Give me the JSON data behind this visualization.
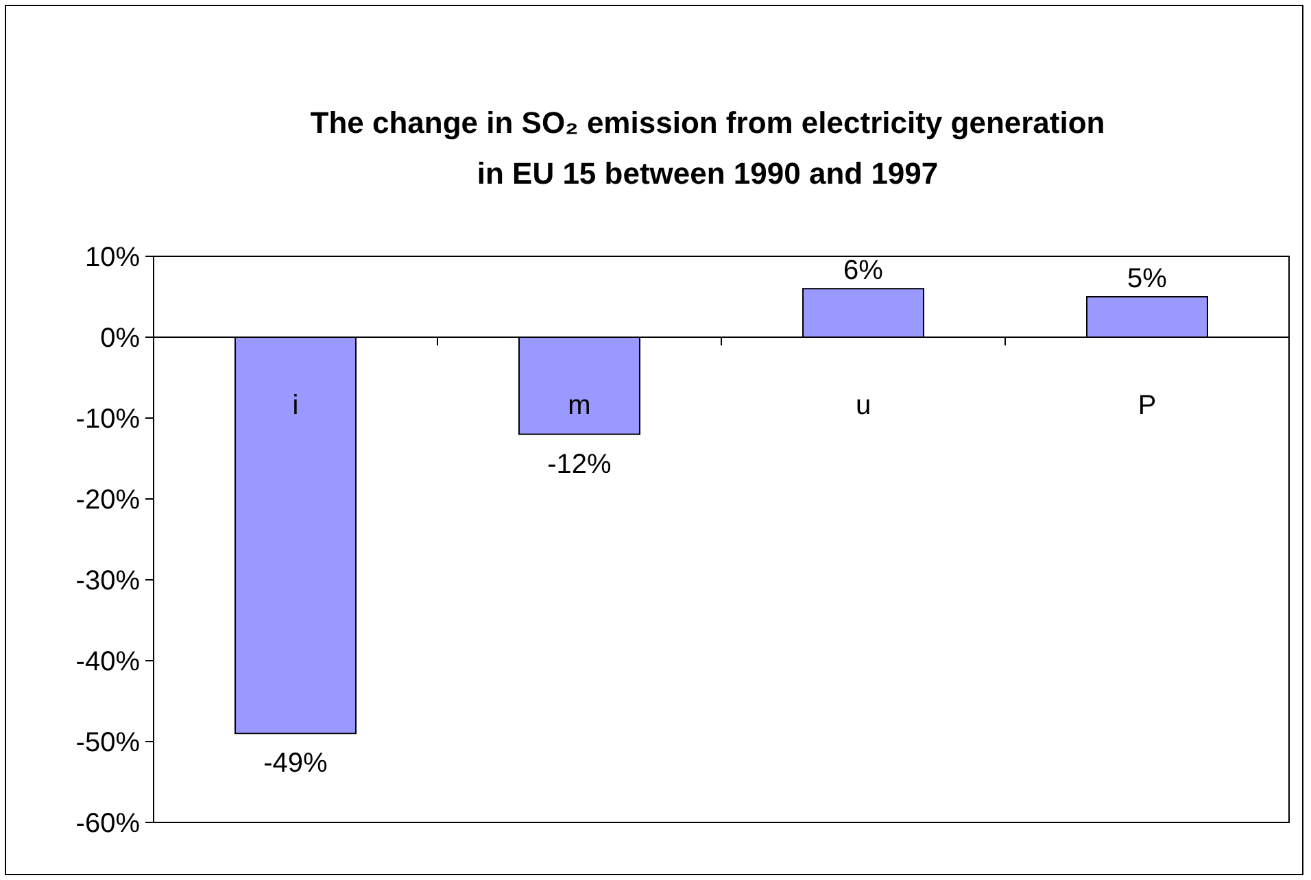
{
  "chart_data": {
    "type": "bar",
    "title": "The change in SO₂ emission from electricity generation in EU 15 between 1990 and 1997",
    "categories": [
      "i",
      "m",
      "u",
      "P"
    ],
    "values": [
      -49,
      -12,
      6,
      5
    ],
    "value_labels": [
      "-49%",
      "-12%",
      "6%",
      "5%"
    ],
    "color": "#9999ff",
    "ylim": [
      -60,
      10
    ],
    "yticks": [
      {
        "value": -60,
        "label": "-60%"
      },
      {
        "value": -50,
        "label": "-50%"
      },
      {
        "value": -40,
        "label": "-40%"
      },
      {
        "value": -30,
        "label": "-30%"
      },
      {
        "value": -20,
        "label": "-20%"
      },
      {
        "value": -10,
        "label": "-10%"
      },
      {
        "value": 0,
        "label": "0%"
      },
      {
        "value": 10,
        "label": "10%"
      }
    ],
    "grid": false
  }
}
